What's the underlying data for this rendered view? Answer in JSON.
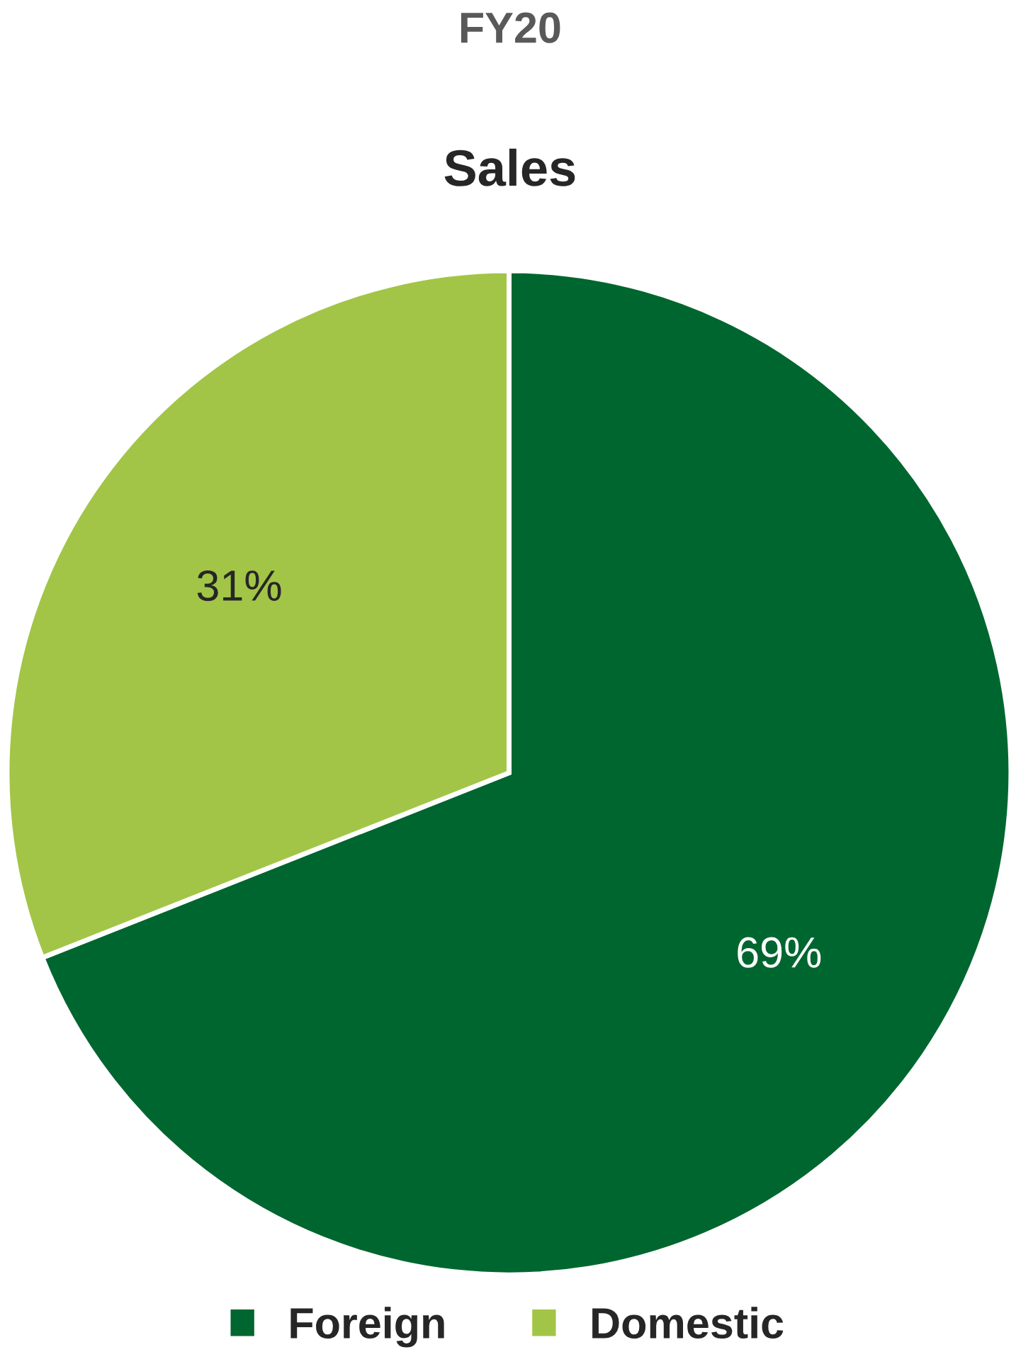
{
  "chart_data": {
    "type": "pie",
    "title": "FY20",
    "subtitle": "Sales",
    "categories": [
      "Foreign",
      "Domestic"
    ],
    "values": [
      69,
      31
    ],
    "colors": [
      "#00662f",
      "#a2c547"
    ],
    "value_labels": [
      "69%",
      "31%"
    ],
    "legend": "bottom"
  }
}
